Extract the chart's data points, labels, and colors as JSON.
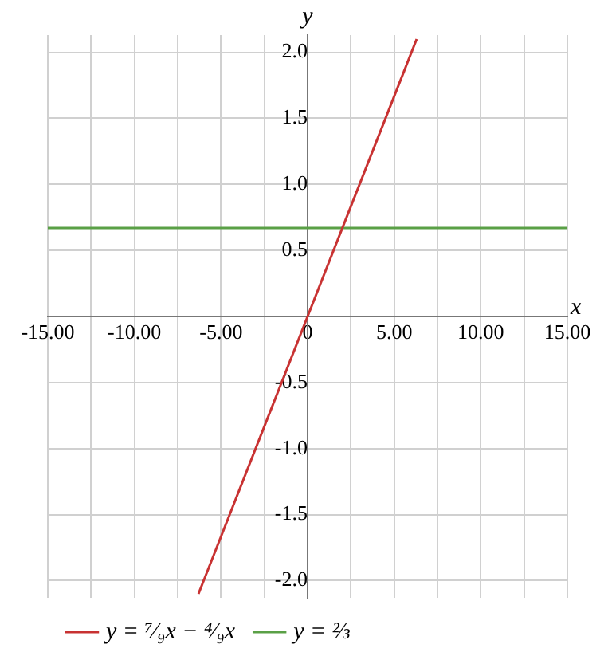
{
  "chart_data": {
    "type": "line",
    "xlabel": "x",
    "ylabel": "y",
    "xlim": [
      -15,
      15
    ],
    "ylim": [
      -2.13,
      2.13
    ],
    "xticks": [
      {
        "value": -15,
        "label": "-15.00"
      },
      {
        "value": -12.5,
        "label": null
      },
      {
        "value": -10,
        "label": "-10.00"
      },
      {
        "value": -7.5,
        "label": null
      },
      {
        "value": -5,
        "label": "-5.00"
      },
      {
        "value": -2.5,
        "label": null
      },
      {
        "value": 0,
        "label": "0"
      },
      {
        "value": 2.5,
        "label": null
      },
      {
        "value": 5,
        "label": "5.00"
      },
      {
        "value": 7.5,
        "label": null
      },
      {
        "value": 10,
        "label": "10.00"
      },
      {
        "value": 12.5,
        "label": null
      },
      {
        "value": 15,
        "label": "15.00"
      }
    ],
    "yticks": [
      {
        "value": -2,
        "label": "-2.0"
      },
      {
        "value": -1.5,
        "label": "-1.5"
      },
      {
        "value": -1,
        "label": "-1.0"
      },
      {
        "value": -0.5,
        "label": "-0.5"
      },
      {
        "value": 0,
        "label": null
      },
      {
        "value": 0.5,
        "label": "0.5"
      },
      {
        "value": 1,
        "label": "1.0"
      },
      {
        "value": 1.5,
        "label": "1.5"
      },
      {
        "value": 2,
        "label": "2.0"
      }
    ],
    "grid": true,
    "legend": "bottom left",
    "marker": "none",
    "line_style": "solid",
    "series": [
      {
        "name": "y = ⁷⁄₉x − ⁴⁄₉x",
        "color": "#c83232",
        "x": [
          -6.3,
          0,
          6.3
        ],
        "values": [
          -2.1,
          0,
          2.1
        ]
      },
      {
        "name": "y = ⅔",
        "color": "#5aa046",
        "x": [
          -15,
          15
        ],
        "values": [
          0.67,
          0.67
        ]
      }
    ]
  }
}
